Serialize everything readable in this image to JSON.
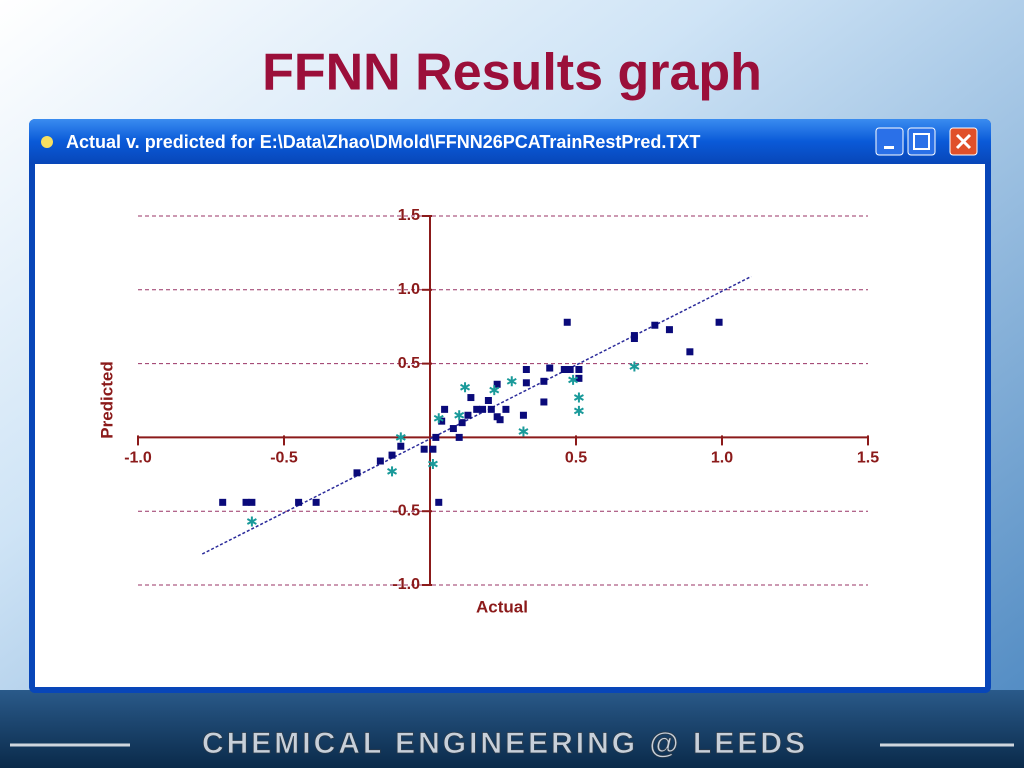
{
  "slide_title": "FFNN Results graph",
  "window_title": "Actual v. predicted for E:\\Data\\Zhao\\DMold\\FFNN26PCATrainRestPred.TXT",
  "footer": "CHEMICAL ENGINEERING @ LEEDS",
  "chart_data": {
    "type": "scatter",
    "xlabel": "Actual",
    "ylabel": "Predicted",
    "xlim": [
      -1.0,
      1.5
    ],
    "xticks": [
      {
        "value": -1.0,
        "label": "-1.0"
      },
      -0.5,
      0.5,
      {
        "value": 1.0,
        "label": "1.0"
      },
      1.5
    ],
    "ylim": [
      -1.0,
      1.5
    ],
    "yticks": [
      1.5,
      {
        "value": 1.0,
        "label": "1.0"
      },
      0.5,
      -0.5,
      {
        "value": -1.0,
        "label": "-1.0"
      }
    ],
    "grid": true,
    "fit_line": {
      "color": "#2a2a9a",
      "x": [
        -0.78,
        1.1
      ],
      "values": [
        -0.79,
        1.09
      ]
    },
    "series": [
      {
        "color": "#0a0a7a",
        "marker": "square",
        "x": [
          -0.71,
          -0.63,
          -0.61,
          -0.45,
          -0.39,
          -0.25,
          -0.17,
          -0.13,
          -0.1,
          -0.02,
          0.01,
          0.03,
          0.02,
          0.04,
          0.05,
          0.08,
          0.1,
          0.11,
          0.13,
          0.14,
          0.16,
          0.18,
          0.2,
          0.21,
          0.23,
          0.24,
          0.23,
          0.26,
          0.33,
          0.33,
          0.32,
          0.39,
          0.39,
          0.41,
          0.46,
          0.47,
          0.48,
          0.51,
          0.51,
          0.7,
          0.7,
          0.77,
          0.82,
          0.89,
          0.99
        ],
        "values": [
          -0.44,
          -0.44,
          -0.44,
          -0.44,
          -0.44,
          -0.24,
          -0.16,
          -0.12,
          -0.06,
          -0.08,
          -0.08,
          -0.44,
          0.0,
          0.11,
          0.19,
          0.06,
          0.0,
          0.1,
          0.15,
          0.27,
          0.19,
          0.19,
          0.25,
          0.19,
          0.36,
          0.12,
          0.14,
          0.19,
          0.37,
          0.46,
          0.15,
          0.24,
          0.38,
          0.47,
          0.46,
          0.78,
          0.46,
          0.4,
          0.46,
          0.67,
          0.69,
          0.76,
          0.73,
          0.58,
          0.78
        ]
      },
      {
        "color": "#1a9a9a",
        "marker": "asterisk",
        "x": [
          -0.61,
          -0.13,
          -0.1,
          0.01,
          0.03,
          0.1,
          0.12,
          0.22,
          0.28,
          0.32,
          0.49,
          0.51,
          0.51,
          0.7
        ],
        "values": [
          -0.57,
          -0.23,
          0.0,
          -0.18,
          0.13,
          0.15,
          0.34,
          0.32,
          0.38,
          0.04,
          0.39,
          0.27,
          0.18,
          0.48
        ]
      }
    ]
  }
}
